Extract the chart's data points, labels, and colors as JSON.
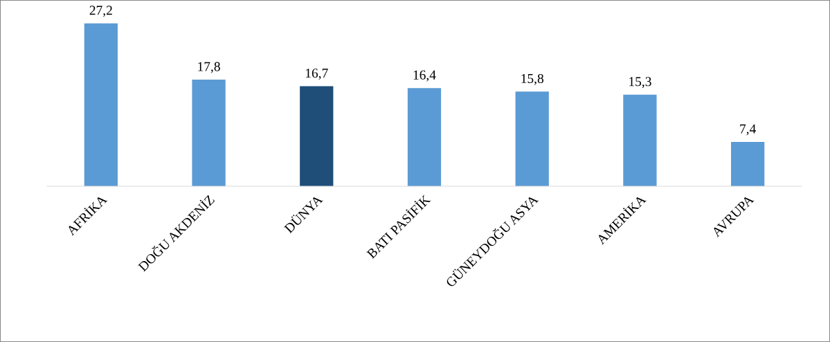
{
  "chart_data": {
    "type": "bar",
    "categories": [
      "AFRİKA",
      "DOĞU AKDENİZ",
      "DÜNYA",
      "BATI PASİFİK",
      "GÜNEYDOĞU ASYA",
      "AMERİKA",
      "AVRUPA"
    ],
    "values": [
      27.2,
      17.8,
      16.7,
      16.4,
      15.8,
      15.3,
      7.4
    ],
    "colors": [
      "#5b9bd5",
      "#5b9bd5",
      "#1f4e79",
      "#5b9bd5",
      "#5b9bd5",
      "#5b9bd5",
      "#5b9bd5"
    ],
    "value_labels": [
      "27,2",
      "17,8",
      "16,7",
      "16,4",
      "15,8",
      "15,3",
      "7,4"
    ],
    "tick_labels": "x",
    "grid": false
  }
}
